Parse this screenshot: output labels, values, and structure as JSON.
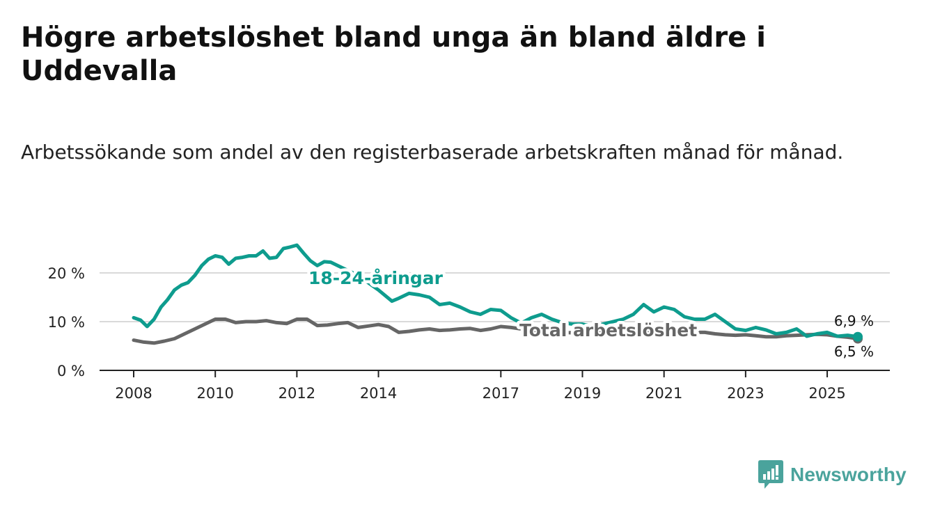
{
  "title": "Högre arbetslöshet bland unga än bland äldre i Uddevalla",
  "subtitle": "Arbetssökande som andel av den registerbaserade arbetskraften månad för månad.",
  "brand": {
    "name": "Newsworthy",
    "color": "#4aa39c"
  },
  "chart_data": {
    "type": "line",
    "title": "Högre arbetslöshet bland unga än bland äldre i Uddevalla",
    "subtitle": "Arbetssökande som andel av den registerbaserade arbetskraften månad för månad.",
    "xlabel": "",
    "ylabel": "",
    "xlim": [
      2008,
      2025.75
    ],
    "ylim": [
      0,
      20
    ],
    "y_ticks": [
      0,
      10,
      20
    ],
    "y_tick_labels": [
      "0 %",
      "10 %",
      "20 %"
    ],
    "x_ticks": [
      2008,
      2010,
      2012,
      2014,
      2017,
      2019,
      2021,
      2023,
      2025
    ],
    "x_tick_labels": [
      "2008",
      "2010",
      "2012",
      "2014",
      "2017",
      "2019",
      "2021",
      "2023",
      "2025"
    ],
    "grid": true,
    "series": [
      {
        "name": "18-24-åringar",
        "label": "18-24-åringar",
        "color": "#0e9c8e",
        "last_value_label": "6,9 %",
        "points": [
          [
            2008.0,
            10.8
          ],
          [
            2008.17,
            10.3
          ],
          [
            2008.33,
            9.0
          ],
          [
            2008.5,
            10.5
          ],
          [
            2008.67,
            13.0
          ],
          [
            2008.83,
            14.5
          ],
          [
            2009.0,
            16.5
          ],
          [
            2009.17,
            17.5
          ],
          [
            2009.33,
            18.0
          ],
          [
            2009.5,
            19.5
          ],
          [
            2009.67,
            21.5
          ],
          [
            2009.83,
            22.8
          ],
          [
            2010.0,
            23.5
          ],
          [
            2010.17,
            23.2
          ],
          [
            2010.33,
            21.8
          ],
          [
            2010.5,
            23.0
          ],
          [
            2010.67,
            23.2
          ],
          [
            2010.83,
            23.5
          ],
          [
            2011.0,
            23.5
          ],
          [
            2011.17,
            24.5
          ],
          [
            2011.33,
            23.0
          ],
          [
            2011.5,
            23.2
          ],
          [
            2011.67,
            25.0
          ],
          [
            2011.83,
            25.3
          ],
          [
            2012.0,
            25.7
          ],
          [
            2012.17,
            24.0
          ],
          [
            2012.33,
            22.5
          ],
          [
            2012.5,
            21.5
          ],
          [
            2012.67,
            22.3
          ],
          [
            2012.83,
            22.2
          ],
          [
            2013.0,
            21.5
          ],
          [
            2013.5,
            19.5
          ],
          [
            2013.83,
            17.5
          ],
          [
            2014.0,
            16.5
          ],
          [
            2014.33,
            14.2
          ],
          [
            2014.5,
            14.8
          ],
          [
            2014.75,
            15.8
          ],
          [
            2015.0,
            15.5
          ],
          [
            2015.25,
            15.0
          ],
          [
            2015.5,
            13.5
          ],
          [
            2015.75,
            13.8
          ],
          [
            2016.0,
            13.0
          ],
          [
            2016.25,
            12.0
          ],
          [
            2016.5,
            11.5
          ],
          [
            2016.75,
            12.5
          ],
          [
            2017.0,
            12.3
          ],
          [
            2017.25,
            10.8
          ],
          [
            2017.5,
            9.7
          ],
          [
            2017.75,
            10.8
          ],
          [
            2018.0,
            11.5
          ],
          [
            2018.25,
            10.5
          ],
          [
            2018.5,
            9.8
          ],
          [
            2018.75,
            9.5
          ],
          [
            2019.0,
            9.5
          ],
          [
            2019.25,
            9.0
          ],
          [
            2019.5,
            9.5
          ],
          [
            2019.75,
            10.0
          ],
          [
            2020.0,
            10.5
          ],
          [
            2020.25,
            11.5
          ],
          [
            2020.5,
            13.5
          ],
          [
            2020.75,
            12.0
          ],
          [
            2021.0,
            13.0
          ],
          [
            2021.25,
            12.5
          ],
          [
            2021.5,
            11.0
          ],
          [
            2021.75,
            10.5
          ],
          [
            2022.0,
            10.5
          ],
          [
            2022.25,
            11.5
          ],
          [
            2022.5,
            10.0
          ],
          [
            2022.75,
            8.5
          ],
          [
            2023.0,
            8.2
          ],
          [
            2023.25,
            8.8
          ],
          [
            2023.5,
            8.3
          ],
          [
            2023.75,
            7.5
          ],
          [
            2024.0,
            7.8
          ],
          [
            2024.25,
            8.5
          ],
          [
            2024.5,
            7.0
          ],
          [
            2024.75,
            7.5
          ],
          [
            2025.0,
            7.8
          ],
          [
            2025.25,
            7.0
          ],
          [
            2025.5,
            7.2
          ],
          [
            2025.75,
            6.9
          ]
        ]
      },
      {
        "name": "Total arbetslöshet",
        "label": "Total arbetslöshet",
        "color": "#666666",
        "last_value_label": "6,5 %",
        "points": [
          [
            2008.0,
            6.2
          ],
          [
            2008.25,
            5.8
          ],
          [
            2008.5,
            5.6
          ],
          [
            2008.75,
            6.0
          ],
          [
            2009.0,
            6.5
          ],
          [
            2009.25,
            7.5
          ],
          [
            2009.5,
            8.5
          ],
          [
            2009.75,
            9.5
          ],
          [
            2010.0,
            10.5
          ],
          [
            2010.25,
            10.5
          ],
          [
            2010.5,
            9.8
          ],
          [
            2010.75,
            10.0
          ],
          [
            2011.0,
            10.0
          ],
          [
            2011.25,
            10.2
          ],
          [
            2011.5,
            9.8
          ],
          [
            2011.75,
            9.6
          ],
          [
            2012.0,
            10.5
          ],
          [
            2012.25,
            10.5
          ],
          [
            2012.5,
            9.2
          ],
          [
            2012.75,
            9.3
          ],
          [
            2013.0,
            9.6
          ],
          [
            2013.25,
            9.8
          ],
          [
            2013.5,
            8.8
          ],
          [
            2013.75,
            9.1
          ],
          [
            2014.0,
            9.4
          ],
          [
            2014.25,
            9.0
          ],
          [
            2014.5,
            7.8
          ],
          [
            2014.75,
            8.0
          ],
          [
            2015.0,
            8.3
          ],
          [
            2015.25,
            8.5
          ],
          [
            2015.5,
            8.2
          ],
          [
            2015.75,
            8.3
          ],
          [
            2016.0,
            8.5
          ],
          [
            2016.25,
            8.6
          ],
          [
            2016.5,
            8.2
          ],
          [
            2016.75,
            8.5
          ],
          [
            2017.0,
            9.0
          ],
          [
            2017.25,
            8.8
          ],
          [
            2017.5,
            8.5
          ],
          [
            2017.75,
            8.2
          ],
          [
            2018.0,
            8.0
          ],
          [
            2018.5,
            7.8
          ],
          [
            2019.0,
            7.6
          ],
          [
            2019.5,
            7.7
          ],
          [
            2020.0,
            8.2
          ],
          [
            2020.5,
            8.3
          ],
          [
            2021.0,
            8.0
          ],
          [
            2021.5,
            7.8
          ],
          [
            2022.0,
            7.8
          ],
          [
            2022.25,
            7.5
          ],
          [
            2022.5,
            7.3
          ],
          [
            2022.75,
            7.2
          ],
          [
            2023.0,
            7.3
          ],
          [
            2023.25,
            7.1
          ],
          [
            2023.5,
            6.9
          ],
          [
            2023.75,
            6.9
          ],
          [
            2024.0,
            7.1
          ],
          [
            2024.25,
            7.2
          ],
          [
            2024.5,
            7.3
          ],
          [
            2024.75,
            7.4
          ],
          [
            2025.0,
            7.3
          ],
          [
            2025.25,
            7.0
          ],
          [
            2025.5,
            6.8
          ],
          [
            2025.75,
            6.5
          ]
        ]
      }
    ]
  }
}
